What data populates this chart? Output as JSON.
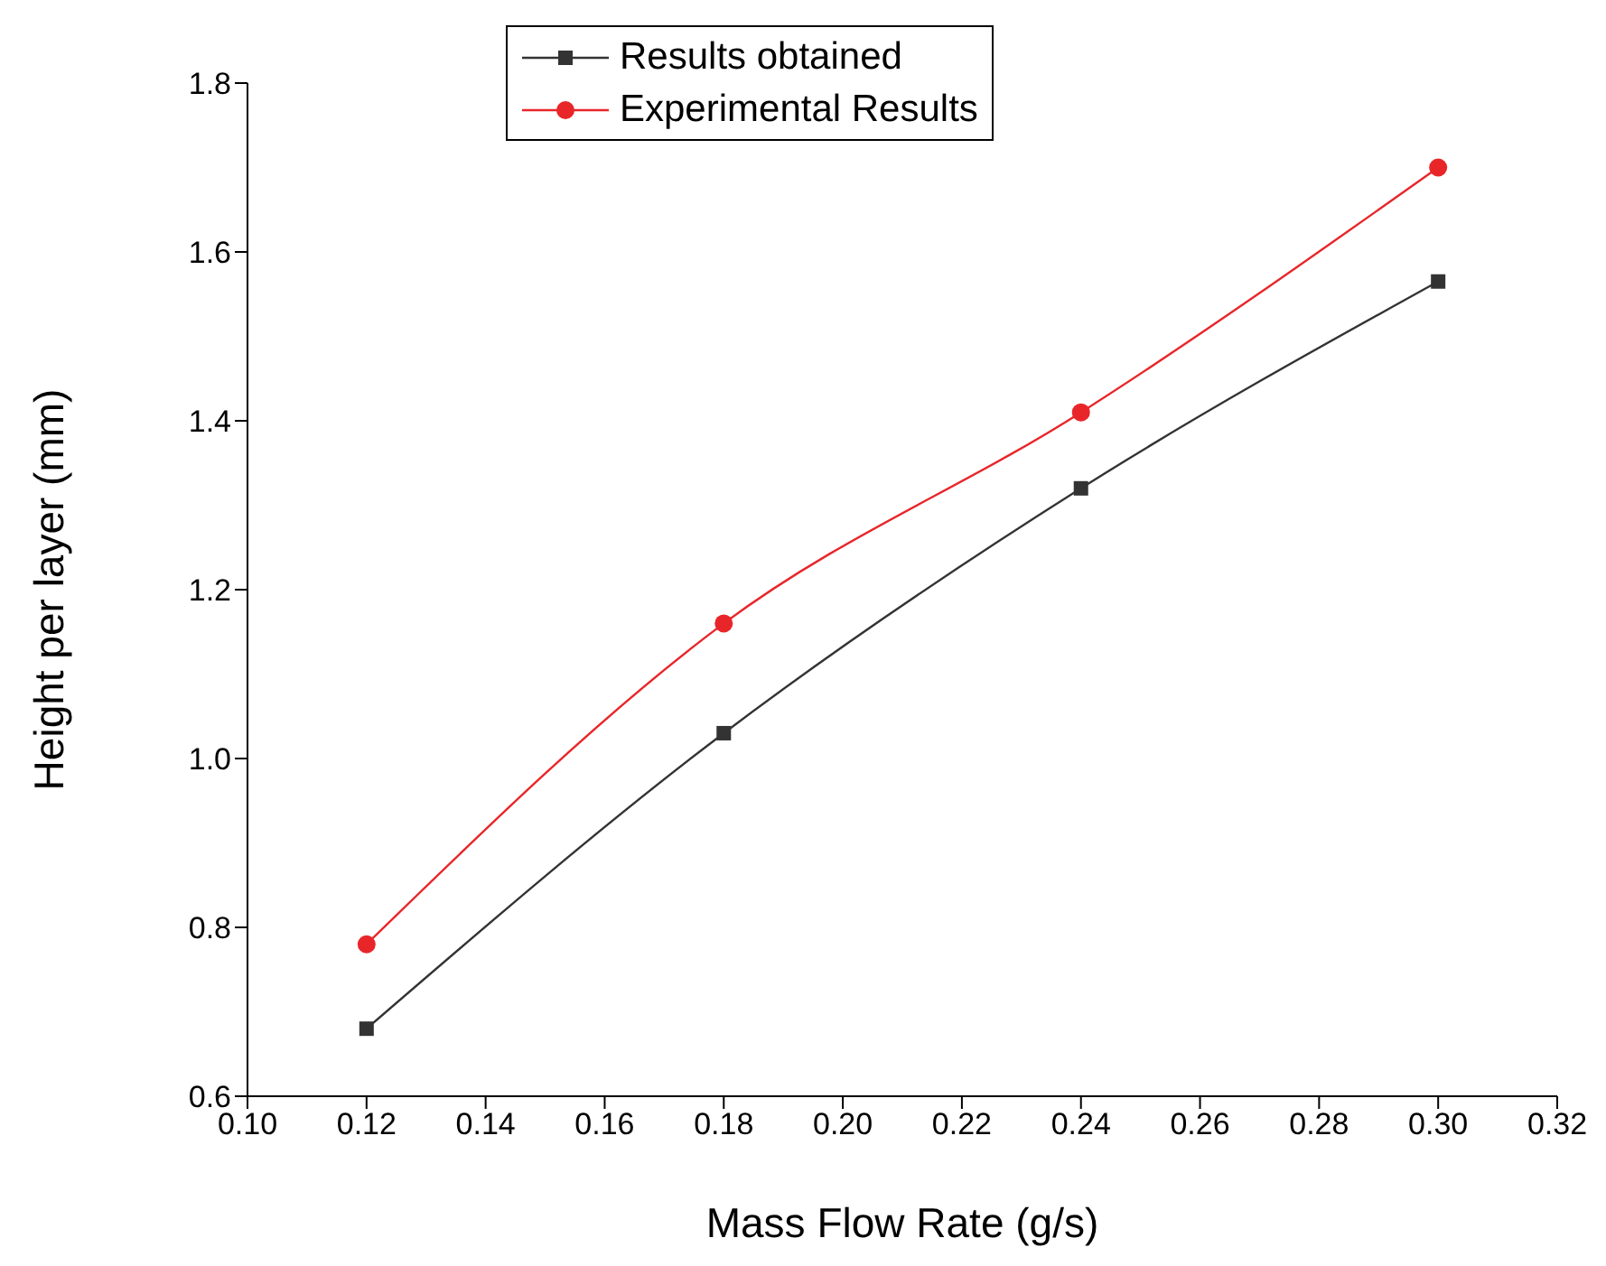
{
  "chart_data": {
    "type": "line",
    "xlabel": "Mass Flow Rate (g/s)",
    "ylabel": "Height per layer (mm)",
    "x": [
      0.12,
      0.18,
      0.24,
      0.3
    ],
    "series": [
      {
        "name": "Results obtained",
        "color": "#333333",
        "marker": "square",
        "values": [
          0.68,
          1.03,
          1.32,
          1.565
        ]
      },
      {
        "name": "Experimental Results",
        "color": "#e8262a",
        "marker": "circle",
        "values": [
          0.78,
          1.16,
          1.41,
          1.7
        ]
      }
    ],
    "xlim": [
      0.1,
      0.32
    ],
    "xticks": [
      {
        "value": 0.1,
        "label": "0.10"
      },
      {
        "value": 0.12,
        "label": "0.12"
      },
      {
        "value": 0.14,
        "label": "0.14"
      },
      {
        "value": 0.16,
        "label": "0.16"
      },
      {
        "value": 0.18,
        "label": "0.18"
      },
      {
        "value": 0.2,
        "label": "0.20"
      },
      {
        "value": 0.22,
        "label": "0.22"
      },
      {
        "value": 0.24,
        "label": "0.24"
      },
      {
        "value": 0.26,
        "label": "0.26"
      },
      {
        "value": 0.28,
        "label": "0.28"
      },
      {
        "value": 0.3,
        "label": "0.30"
      },
      {
        "value": 0.32,
        "label": "0.32"
      }
    ],
    "ylim": [
      0.6,
      1.8
    ],
    "yticks": [
      {
        "value": 0.6,
        "label": "0.6"
      },
      {
        "value": 0.8,
        "label": "0.8"
      },
      {
        "value": 1.0,
        "label": "1.0"
      },
      {
        "value": 1.2,
        "label": "1.2"
      },
      {
        "value": 1.4,
        "label": "1.4"
      },
      {
        "value": 1.6,
        "label": "1.6"
      },
      {
        "value": 1.8,
        "label": "1.8"
      }
    ],
    "grid": false,
    "legend": "top",
    "line_style": "solid"
  }
}
